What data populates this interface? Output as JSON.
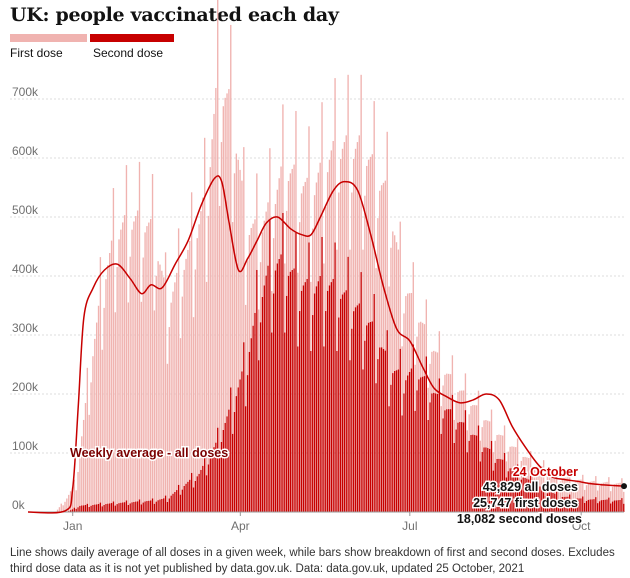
{
  "title": "UK: people vaccinated each day",
  "legend": [
    {
      "name": "First dose",
      "color": "#f0b3b0"
    },
    {
      "name": "Second dose",
      "color": "#c70000"
    }
  ],
  "footnote": "Line shows daily average of all doses in a given week, while bars show breakdown of first and second doses. Excludes third dose data as it is not yet published by data.gov.uk. Data: data.gov.uk, updated 25 October, 2021",
  "annotations": {
    "line_label": "Weekly average - all doses",
    "latest_date": "24 October",
    "latest_all": "43,829 all doses",
    "latest_first": "25,747 first doses",
    "latest_second": "18,082 second doses"
  },
  "chart_data": {
    "type": "bar",
    "title": "UK: people vaccinated each day",
    "stacked": true,
    "x_start": "2020-12-08",
    "x_end": "2021-10-24",
    "x_ticks": [
      {
        "date": "2021-01-01",
        "label": "Jan"
      },
      {
        "date": "2021-04-01",
        "label": "Apr"
      },
      {
        "date": "2021-07-01",
        "label": "Jul"
      },
      {
        "date": "2021-10-01",
        "label": "Oct"
      }
    ],
    "y_ticks": [
      {
        "value": 0,
        "label": "0k"
      },
      {
        "value": 100000,
        "label": "100k"
      },
      {
        "value": 200000,
        "label": "200k"
      },
      {
        "value": 300000,
        "label": "300k"
      },
      {
        "value": 400000,
        "label": "400k"
      },
      {
        "value": 500000,
        "label": "500k"
      },
      {
        "value": 600000,
        "label": "600k"
      },
      {
        "value": 700000,
        "label": "700k"
      }
    ],
    "ylim": [
      0,
      720000
    ],
    "grid": "horizontal",
    "series": [
      {
        "name": "First dose",
        "color": "#f0b3b0",
        "keypoints": [
          [
            "2020-12-08",
            0
          ],
          [
            "2020-12-23",
            0
          ],
          [
            "2021-01-03",
            40000
          ],
          [
            "2021-01-10",
            200000
          ],
          [
            "2021-01-17",
            340000
          ],
          [
            "2021-01-24",
            420000
          ],
          [
            "2021-01-31",
            440000
          ],
          [
            "2021-02-07",
            440000
          ],
          [
            "2021-02-14",
            420000
          ],
          [
            "2021-02-21",
            300000
          ],
          [
            "2021-02-28",
            340000
          ],
          [
            "2021-03-07",
            370000
          ],
          [
            "2021-03-14",
            420000
          ],
          [
            "2021-03-20",
            560000
          ],
          [
            "2021-03-28",
            460000
          ],
          [
            "2021-04-04",
            220000
          ],
          [
            "2021-04-11",
            110000
          ],
          [
            "2021-04-18",
            90000
          ],
          [
            "2021-04-25",
            150000
          ],
          [
            "2021-05-02",
            160000
          ],
          [
            "2021-05-09",
            150000
          ],
          [
            "2021-05-16",
            180000
          ],
          [
            "2021-05-23",
            220000
          ],
          [
            "2021-05-30",
            240000
          ],
          [
            "2021-06-06",
            260000
          ],
          [
            "2021-06-13",
            250000
          ],
          [
            "2021-06-20",
            260000
          ],
          [
            "2021-06-27",
            150000
          ],
          [
            "2021-07-04",
            100000
          ],
          [
            "2021-07-11",
            70000
          ],
          [
            "2021-07-25",
            50000
          ],
          [
            "2021-08-08",
            45000
          ],
          [
            "2021-08-22",
            35000
          ],
          [
            "2021-09-05",
            32000
          ],
          [
            "2021-09-19",
            30000
          ],
          [
            "2021-10-03",
            28000
          ],
          [
            "2021-10-24",
            25747
          ]
        ]
      },
      {
        "name": "Second dose",
        "color": "#c70000",
        "keypoints": [
          [
            "2020-12-08",
            0
          ],
          [
            "2020-12-29",
            0
          ],
          [
            "2021-01-05",
            10000
          ],
          [
            "2021-01-24",
            14000
          ],
          [
            "2021-02-14",
            18000
          ],
          [
            "2021-02-21",
            22000
          ],
          [
            "2021-03-01",
            40000
          ],
          [
            "2021-03-10",
            60000
          ],
          [
            "2021-03-20",
            110000
          ],
          [
            "2021-03-28",
            170000
          ],
          [
            "2021-04-04",
            230000
          ],
          [
            "2021-04-11",
            330000
          ],
          [
            "2021-04-18",
            390000
          ],
          [
            "2021-04-25",
            390000
          ],
          [
            "2021-05-02",
            360000
          ],
          [
            "2021-05-09",
            350000
          ],
          [
            "2021-05-16",
            360000
          ],
          [
            "2021-05-23",
            350000
          ],
          [
            "2021-05-30",
            330000
          ],
          [
            "2021-06-06",
            310000
          ],
          [
            "2021-06-13",
            280000
          ],
          [
            "2021-06-20",
            230000
          ],
          [
            "2021-06-27",
            210000
          ],
          [
            "2021-07-04",
            220000
          ],
          [
            "2021-07-11",
            200000
          ],
          [
            "2021-07-18",
            170000
          ],
          [
            "2021-07-25",
            150000
          ],
          [
            "2021-08-01",
            130000
          ],
          [
            "2021-08-08",
            110000
          ],
          [
            "2021-08-15",
            90000
          ],
          [
            "2021-08-22",
            75000
          ],
          [
            "2021-09-05",
            45000
          ],
          [
            "2021-09-19",
            25000
          ],
          [
            "2021-10-03",
            20000
          ],
          [
            "2021-10-24",
            18082
          ]
        ]
      },
      {
        "name": "Weekly average - all doses",
        "color": "#c70000",
        "keypoints": [
          [
            "2020-12-08",
            0
          ],
          [
            "2020-12-28",
            2000
          ],
          [
            "2021-01-01",
            40000
          ],
          [
            "2021-01-04",
            180000
          ],
          [
            "2021-01-07",
            330000
          ],
          [
            "2021-01-12",
            380000
          ],
          [
            "2021-01-18",
            410000
          ],
          [
            "2021-01-25",
            420000
          ],
          [
            "2021-02-01",
            395000
          ],
          [
            "2021-02-07",
            370000
          ],
          [
            "2021-02-12",
            385000
          ],
          [
            "2021-02-18",
            380000
          ],
          [
            "2021-02-25",
            420000
          ],
          [
            "2021-03-04",
            460000
          ],
          [
            "2021-03-11",
            520000
          ],
          [
            "2021-03-18",
            565000
          ],
          [
            "2021-03-22",
            560000
          ],
          [
            "2021-03-26",
            490000
          ],
          [
            "2021-03-31",
            410000
          ],
          [
            "2021-04-05",
            430000
          ],
          [
            "2021-04-10",
            460000
          ],
          [
            "2021-04-15",
            490000
          ],
          [
            "2021-04-21",
            500000
          ],
          [
            "2021-04-28",
            480000
          ],
          [
            "2021-05-04",
            470000
          ],
          [
            "2021-05-09",
            470000
          ],
          [
            "2021-05-14",
            500000
          ],
          [
            "2021-05-21",
            545000
          ],
          [
            "2021-05-27",
            560000
          ],
          [
            "2021-06-03",
            545000
          ],
          [
            "2021-06-10",
            470000
          ],
          [
            "2021-06-17",
            380000
          ],
          [
            "2021-06-24",
            310000
          ],
          [
            "2021-07-01",
            290000
          ],
          [
            "2021-07-08",
            245000
          ],
          [
            "2021-07-14",
            210000
          ],
          [
            "2021-07-21",
            195000
          ],
          [
            "2021-07-28",
            185000
          ],
          [
            "2021-08-04",
            190000
          ],
          [
            "2021-08-11",
            200000
          ],
          [
            "2021-08-18",
            190000
          ],
          [
            "2021-08-25",
            145000
          ],
          [
            "2021-09-01",
            110000
          ],
          [
            "2021-09-08",
            80000
          ],
          [
            "2021-09-15",
            60000
          ],
          [
            "2021-09-22",
            55000
          ],
          [
            "2021-09-29",
            52000
          ],
          [
            "2021-10-06",
            48000
          ],
          [
            "2021-10-13",
            46000
          ],
          [
            "2021-10-24",
            43829
          ]
        ]
      }
    ],
    "latest": {
      "date": "2021-10-24",
      "all": 43829,
      "first": 25747,
      "second": 18082
    }
  }
}
